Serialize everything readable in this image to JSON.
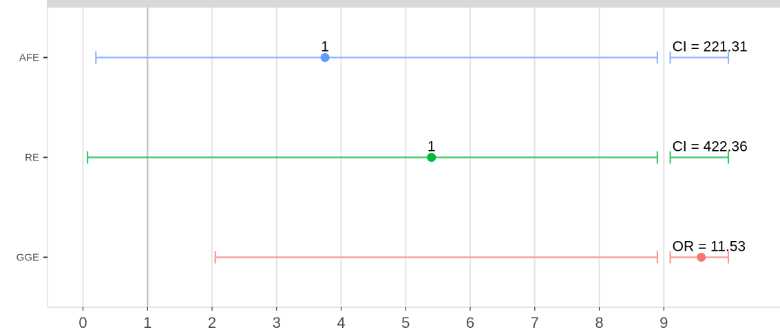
{
  "chart_data": {
    "type": "forest",
    "title": "",
    "xlabel": "",
    "ylabel": "",
    "xlim": [
      -0.55,
      10.8
    ],
    "x_ticks": [
      0,
      1,
      2,
      3,
      4,
      5,
      6,
      7,
      8,
      9
    ],
    "x_tick_labels": [
      "0",
      "1",
      "2",
      "3",
      "4",
      "5",
      "6",
      "7",
      "8",
      "9"
    ],
    "reference_line": 1,
    "axis_break": [
      8.9,
      9.1
    ],
    "grid": true,
    "legend": "none",
    "series": [
      {
        "name": "AFE",
        "point": 3.75,
        "lower": 0.2,
        "upper": 8.9,
        "overflow_upper": 10.0,
        "point_label": "1",
        "annotation": "CI = 221.31",
        "color": "#619CFF",
        "bar_color": "#8DB6FF"
      },
      {
        "name": "RE",
        "point": 5.4,
        "lower": 0.07,
        "upper": 8.9,
        "overflow_upper": 10.0,
        "point_label": "1",
        "annotation": "CI = 422.36",
        "color": "#00BA38",
        "bar_color": "#3CC764"
      },
      {
        "name": "GGE",
        "point": 9.58,
        "lower": 2.05,
        "upper": 8.9,
        "overflow_upper": 10.0,
        "point_label": "",
        "annotation": "OR = 11.53",
        "color": "#F8766D",
        "bar_color": "#F69A93"
      }
    ]
  }
}
